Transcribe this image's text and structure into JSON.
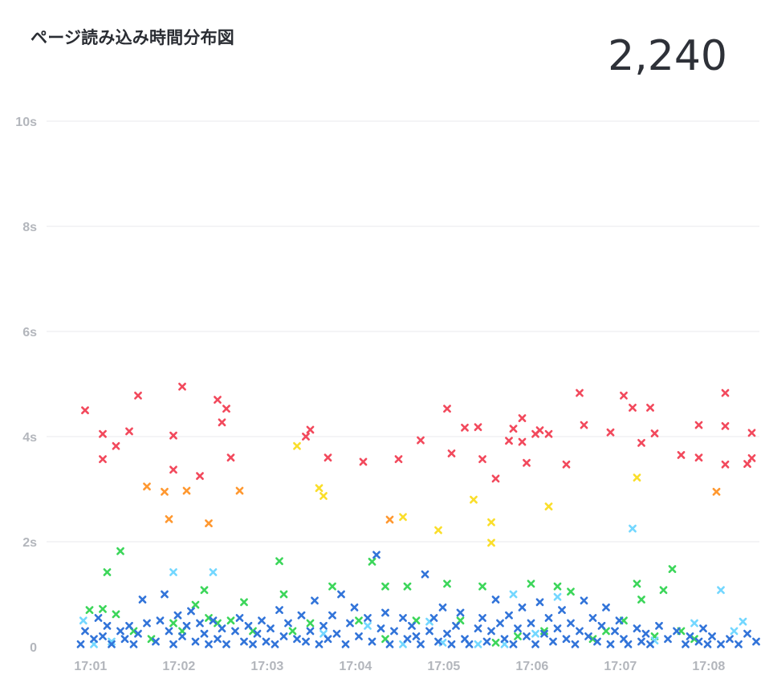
{
  "panel": {
    "title": "ページ読み込み時間分布図",
    "total": "2,240"
  },
  "colors": {
    "very_slow": "#f2495c",
    "slow_orange": "#ff9830",
    "slow_yellow": "#fade2a",
    "medium": "#3cd65a",
    "fast_light": "#73d7ff",
    "fast": "#3274d9"
  },
  "chart_data": {
    "type": "scatter",
    "title": "ページ読み込み時間分布図",
    "xlabel": "",
    "ylabel": "",
    "marker": "x-cross",
    "grid": true,
    "ylim": [
      0,
      10
    ],
    "y_ticks": [
      "0",
      "2s",
      "4s",
      "6s",
      "8s",
      "10s"
    ],
    "y_tick_values": [
      0,
      2,
      4,
      6,
      8,
      10
    ],
    "x_ticks": [
      "17:01",
      "17:02",
      "17:03",
      "17:04",
      "17:05",
      "17:06",
      "17:07",
      "17:08"
    ],
    "x_unit": "minutes (17:00 + value)",
    "xlim": [
      0.05,
      8.3
    ],
    "series": [
      {
        "color_key": "very_slow",
        "points": [
          [
            0.1,
            4.5
          ],
          [
            0.3,
            4.05
          ],
          [
            0.3,
            3.57
          ],
          [
            0.45,
            3.82
          ],
          [
            0.6,
            4.1
          ],
          [
            0.7,
            4.78
          ],
          [
            1.1,
            4.02
          ],
          [
            1.1,
            3.37
          ],
          [
            1.2,
            4.95
          ],
          [
            1.4,
            3.25
          ],
          [
            1.6,
            4.7
          ],
          [
            1.65,
            4.27
          ],
          [
            1.7,
            4.53
          ],
          [
            1.75,
            3.6
          ],
          [
            2.6,
            4.0
          ],
          [
            2.65,
            4.13
          ],
          [
            2.85,
            3.6
          ],
          [
            3.25,
            3.52
          ],
          [
            3.65,
            3.57
          ],
          [
            3.9,
            3.93
          ],
          [
            4.2,
            4.53
          ],
          [
            4.25,
            3.68
          ],
          [
            4.4,
            4.17
          ],
          [
            4.55,
            4.18
          ],
          [
            4.6,
            3.57
          ],
          [
            4.75,
            3.2
          ],
          [
            4.9,
            3.92
          ],
          [
            4.95,
            4.15
          ],
          [
            5.05,
            4.35
          ],
          [
            5.05,
            3.9
          ],
          [
            5.1,
            3.5
          ],
          [
            5.2,
            4.05
          ],
          [
            5.25,
            4.12
          ],
          [
            5.35,
            4.05
          ],
          [
            5.55,
            3.47
          ],
          [
            5.7,
            4.83
          ],
          [
            5.75,
            4.22
          ],
          [
            6.05,
            4.08
          ],
          [
            6.2,
            4.78
          ],
          [
            6.3,
            4.55
          ],
          [
            6.4,
            3.88
          ],
          [
            6.5,
            4.55
          ],
          [
            6.55,
            4.06
          ],
          [
            6.85,
            3.65
          ],
          [
            7.05,
            4.22
          ],
          [
            7.05,
            3.6
          ],
          [
            7.35,
            4.83
          ],
          [
            7.35,
            3.47
          ],
          [
            7.35,
            4.2
          ],
          [
            7.6,
            3.48
          ],
          [
            7.65,
            4.07
          ],
          [
            7.65,
            3.59
          ],
          [
            8.2,
            4.05
          ],
          [
            8.25,
            4.18
          ]
        ]
      },
      {
        "color_key": "slow_orange",
        "points": [
          [
            0.8,
            3.05
          ],
          [
            1.0,
            2.95
          ],
          [
            1.05,
            2.43
          ],
          [
            1.25,
            2.97
          ],
          [
            1.5,
            2.35
          ],
          [
            1.85,
            2.97
          ],
          [
            3.55,
            2.42
          ],
          [
            7.25,
            2.95
          ]
        ]
      },
      {
        "color_key": "slow_yellow",
        "points": [
          [
            2.5,
            3.82
          ],
          [
            2.75,
            3.02
          ],
          [
            2.8,
            2.87
          ],
          [
            3.7,
            2.47
          ],
          [
            4.1,
            2.22
          ],
          [
            4.5,
            2.8
          ],
          [
            4.7,
            2.37
          ],
          [
            4.7,
            1.98
          ],
          [
            5.35,
            2.67
          ],
          [
            6.35,
            3.22
          ]
        ]
      },
      {
        "color_key": "medium",
        "points": [
          [
            0.15,
            0.7
          ],
          [
            0.3,
            0.72
          ],
          [
            0.35,
            1.42
          ],
          [
            0.45,
            0.62
          ],
          [
            0.5,
            1.82
          ],
          [
            0.65,
            0.3
          ],
          [
            0.85,
            0.15
          ],
          [
            1.1,
            0.45
          ],
          [
            1.2,
            0.3
          ],
          [
            1.35,
            0.8
          ],
          [
            1.45,
            1.08
          ],
          [
            1.5,
            0.55
          ],
          [
            1.6,
            0.45
          ],
          [
            1.75,
            0.5
          ],
          [
            1.9,
            0.85
          ],
          [
            2.0,
            0.3
          ],
          [
            2.3,
            1.63
          ],
          [
            2.35,
            1.0
          ],
          [
            2.45,
            0.3
          ],
          [
            2.65,
            0.45
          ],
          [
            2.9,
            1.15
          ],
          [
            3.2,
            0.5
          ],
          [
            3.35,
            1.62
          ],
          [
            3.5,
            0.15
          ],
          [
            3.5,
            1.15
          ],
          [
            3.75,
            1.15
          ],
          [
            3.85,
            0.5
          ],
          [
            4.2,
            1.2
          ],
          [
            4.35,
            0.5
          ],
          [
            4.6,
            1.15
          ],
          [
            4.75,
            0.08
          ],
          [
            5.0,
            0.2
          ],
          [
            5.15,
            1.2
          ],
          [
            5.3,
            0.3
          ],
          [
            5.45,
            1.15
          ],
          [
            5.6,
            1.05
          ],
          [
            5.85,
            0.15
          ],
          [
            6.0,
            0.3
          ],
          [
            6.2,
            0.5
          ],
          [
            6.35,
            1.2
          ],
          [
            6.4,
            0.9
          ],
          [
            6.55,
            0.2
          ],
          [
            6.65,
            1.08
          ],
          [
            6.75,
            1.48
          ],
          [
            6.85,
            0.3
          ],
          [
            7.0,
            0.15
          ]
        ]
      },
      {
        "color_key": "fast_light",
        "points": [
          [
            0.08,
            0.5
          ],
          [
            0.2,
            0.05
          ],
          [
            0.4,
            0.1
          ],
          [
            1.1,
            1.42
          ],
          [
            1.55,
            1.42
          ],
          [
            2.8,
            0.25
          ],
          [
            3.3,
            0.4
          ],
          [
            3.7,
            0.05
          ],
          [
            4.0,
            0.48
          ],
          [
            4.15,
            0.08
          ],
          [
            4.55,
            0.05
          ],
          [
            4.85,
            0.05
          ],
          [
            4.95,
            1.0
          ],
          [
            5.2,
            0.25
          ],
          [
            5.45,
            0.95
          ],
          [
            6.3,
            2.25
          ],
          [
            6.55,
            0.12
          ],
          [
            7.0,
            0.45
          ],
          [
            7.3,
            1.08
          ],
          [
            7.45,
            0.3
          ],
          [
            7.55,
            0.48
          ],
          [
            7.75,
            0.35
          ],
          [
            7.8,
            0.48
          ],
          [
            8.25,
            1.08
          ],
          [
            8.05,
            0.1
          ]
        ]
      },
      {
        "color_key": "fast",
        "points": [
          [
            0.05,
            0.05
          ],
          [
            0.1,
            0.3
          ],
          [
            0.2,
            0.15
          ],
          [
            0.25,
            0.55
          ],
          [
            0.3,
            0.2
          ],
          [
            0.35,
            0.4
          ],
          [
            0.4,
            0.05
          ],
          [
            0.5,
            0.3
          ],
          [
            0.55,
            0.15
          ],
          [
            0.6,
            0.4
          ],
          [
            0.65,
            0.05
          ],
          [
            0.7,
            0.25
          ],
          [
            0.75,
            0.9
          ],
          [
            0.8,
            0.45
          ],
          [
            0.9,
            0.1
          ],
          [
            0.95,
            0.5
          ],
          [
            1.0,
            1.0
          ],
          [
            1.05,
            0.3
          ],
          [
            1.1,
            0.05
          ],
          [
            1.15,
            0.6
          ],
          [
            1.2,
            0.2
          ],
          [
            1.25,
            0.4
          ],
          [
            1.3,
            0.68
          ],
          [
            1.35,
            0.1
          ],
          [
            1.4,
            0.45
          ],
          [
            1.45,
            0.25
          ],
          [
            1.5,
            0.05
          ],
          [
            1.55,
            0.5
          ],
          [
            1.6,
            0.15
          ],
          [
            1.65,
            0.35
          ],
          [
            1.7,
            0.05
          ],
          [
            1.8,
            0.3
          ],
          [
            1.85,
            0.55
          ],
          [
            1.9,
            0.1
          ],
          [
            1.95,
            0.4
          ],
          [
            2.0,
            0.05
          ],
          [
            2.05,
            0.25
          ],
          [
            2.1,
            0.5
          ],
          [
            2.15,
            0.1
          ],
          [
            2.2,
            0.35
          ],
          [
            2.25,
            0.05
          ],
          [
            2.3,
            0.7
          ],
          [
            2.35,
            0.2
          ],
          [
            2.4,
            0.45
          ],
          [
            2.5,
            0.15
          ],
          [
            2.55,
            0.6
          ],
          [
            2.6,
            0.1
          ],
          [
            2.65,
            0.3
          ],
          [
            2.7,
            0.88
          ],
          [
            2.75,
            0.05
          ],
          [
            2.8,
            0.4
          ],
          [
            2.85,
            0.15
          ],
          [
            2.9,
            0.6
          ],
          [
            2.95,
            0.25
          ],
          [
            3.0,
            1.0
          ],
          [
            3.05,
            0.05
          ],
          [
            3.1,
            0.45
          ],
          [
            3.15,
            0.75
          ],
          [
            3.2,
            0.2
          ],
          [
            3.3,
            0.55
          ],
          [
            3.35,
            0.1
          ],
          [
            3.4,
            1.75
          ],
          [
            3.45,
            0.35
          ],
          [
            3.5,
            0.65
          ],
          [
            3.55,
            0.05
          ],
          [
            3.6,
            0.3
          ],
          [
            3.7,
            0.55
          ],
          [
            3.75,
            0.15
          ],
          [
            3.8,
            0.4
          ],
          [
            3.85,
            0.2
          ],
          [
            3.9,
            0.05
          ],
          [
            3.95,
            1.38
          ],
          [
            4.0,
            0.3
          ],
          [
            4.05,
            0.55
          ],
          [
            4.1,
            0.1
          ],
          [
            4.15,
            0.75
          ],
          [
            4.2,
            0.25
          ],
          [
            4.25,
            0.05
          ],
          [
            4.3,
            0.4
          ],
          [
            4.35,
            0.65
          ],
          [
            4.4,
            0.15
          ],
          [
            4.45,
            0.05
          ],
          [
            4.55,
            0.35
          ],
          [
            4.6,
            0.55
          ],
          [
            4.65,
            0.1
          ],
          [
            4.7,
            0.3
          ],
          [
            4.75,
            0.9
          ],
          [
            4.8,
            0.45
          ],
          [
            4.85,
            0.15
          ],
          [
            4.9,
            0.6
          ],
          [
            4.95,
            0.05
          ],
          [
            5.0,
            0.35
          ],
          [
            5.05,
            0.75
          ],
          [
            5.1,
            0.2
          ],
          [
            5.15,
            0.45
          ],
          [
            5.2,
            0.05
          ],
          [
            5.25,
            0.85
          ],
          [
            5.3,
            0.25
          ],
          [
            5.35,
            0.55
          ],
          [
            5.4,
            0.1
          ],
          [
            5.45,
            0.35
          ],
          [
            5.5,
            0.7
          ],
          [
            5.55,
            0.15
          ],
          [
            5.6,
            0.45
          ],
          [
            5.65,
            0.05
          ],
          [
            5.7,
            0.3
          ],
          [
            5.75,
            0.88
          ],
          [
            5.8,
            0.2
          ],
          [
            5.85,
            0.55
          ],
          [
            5.9,
            0.1
          ],
          [
            5.95,
            0.4
          ],
          [
            6.0,
            0.75
          ],
          [
            6.05,
            0.05
          ],
          [
            6.1,
            0.3
          ],
          [
            6.15,
            0.5
          ],
          [
            6.2,
            0.15
          ],
          [
            6.25,
            0.05
          ],
          [
            6.35,
            0.35
          ],
          [
            6.4,
            0.1
          ],
          [
            6.45,
            0.25
          ],
          [
            6.5,
            0.05
          ],
          [
            6.6,
            0.4
          ],
          [
            6.7,
            0.15
          ],
          [
            6.8,
            0.3
          ],
          [
            6.9,
            0.05
          ],
          [
            6.95,
            0.2
          ],
          [
            7.05,
            0.1
          ],
          [
            7.1,
            0.35
          ],
          [
            7.15,
            0.05
          ],
          [
            7.2,
            0.2
          ],
          [
            7.3,
            0.05
          ],
          [
            7.4,
            0.15
          ],
          [
            7.5,
            0.05
          ],
          [
            7.6,
            0.25
          ],
          [
            7.7,
            0.1
          ],
          [
            7.85,
            0.05
          ],
          [
            7.9,
            0.2
          ],
          [
            8.0,
            0.05
          ],
          [
            8.1,
            0.15
          ],
          [
            8.2,
            0.3
          ],
          [
            8.3,
            0.25
          ]
        ]
      }
    ]
  }
}
